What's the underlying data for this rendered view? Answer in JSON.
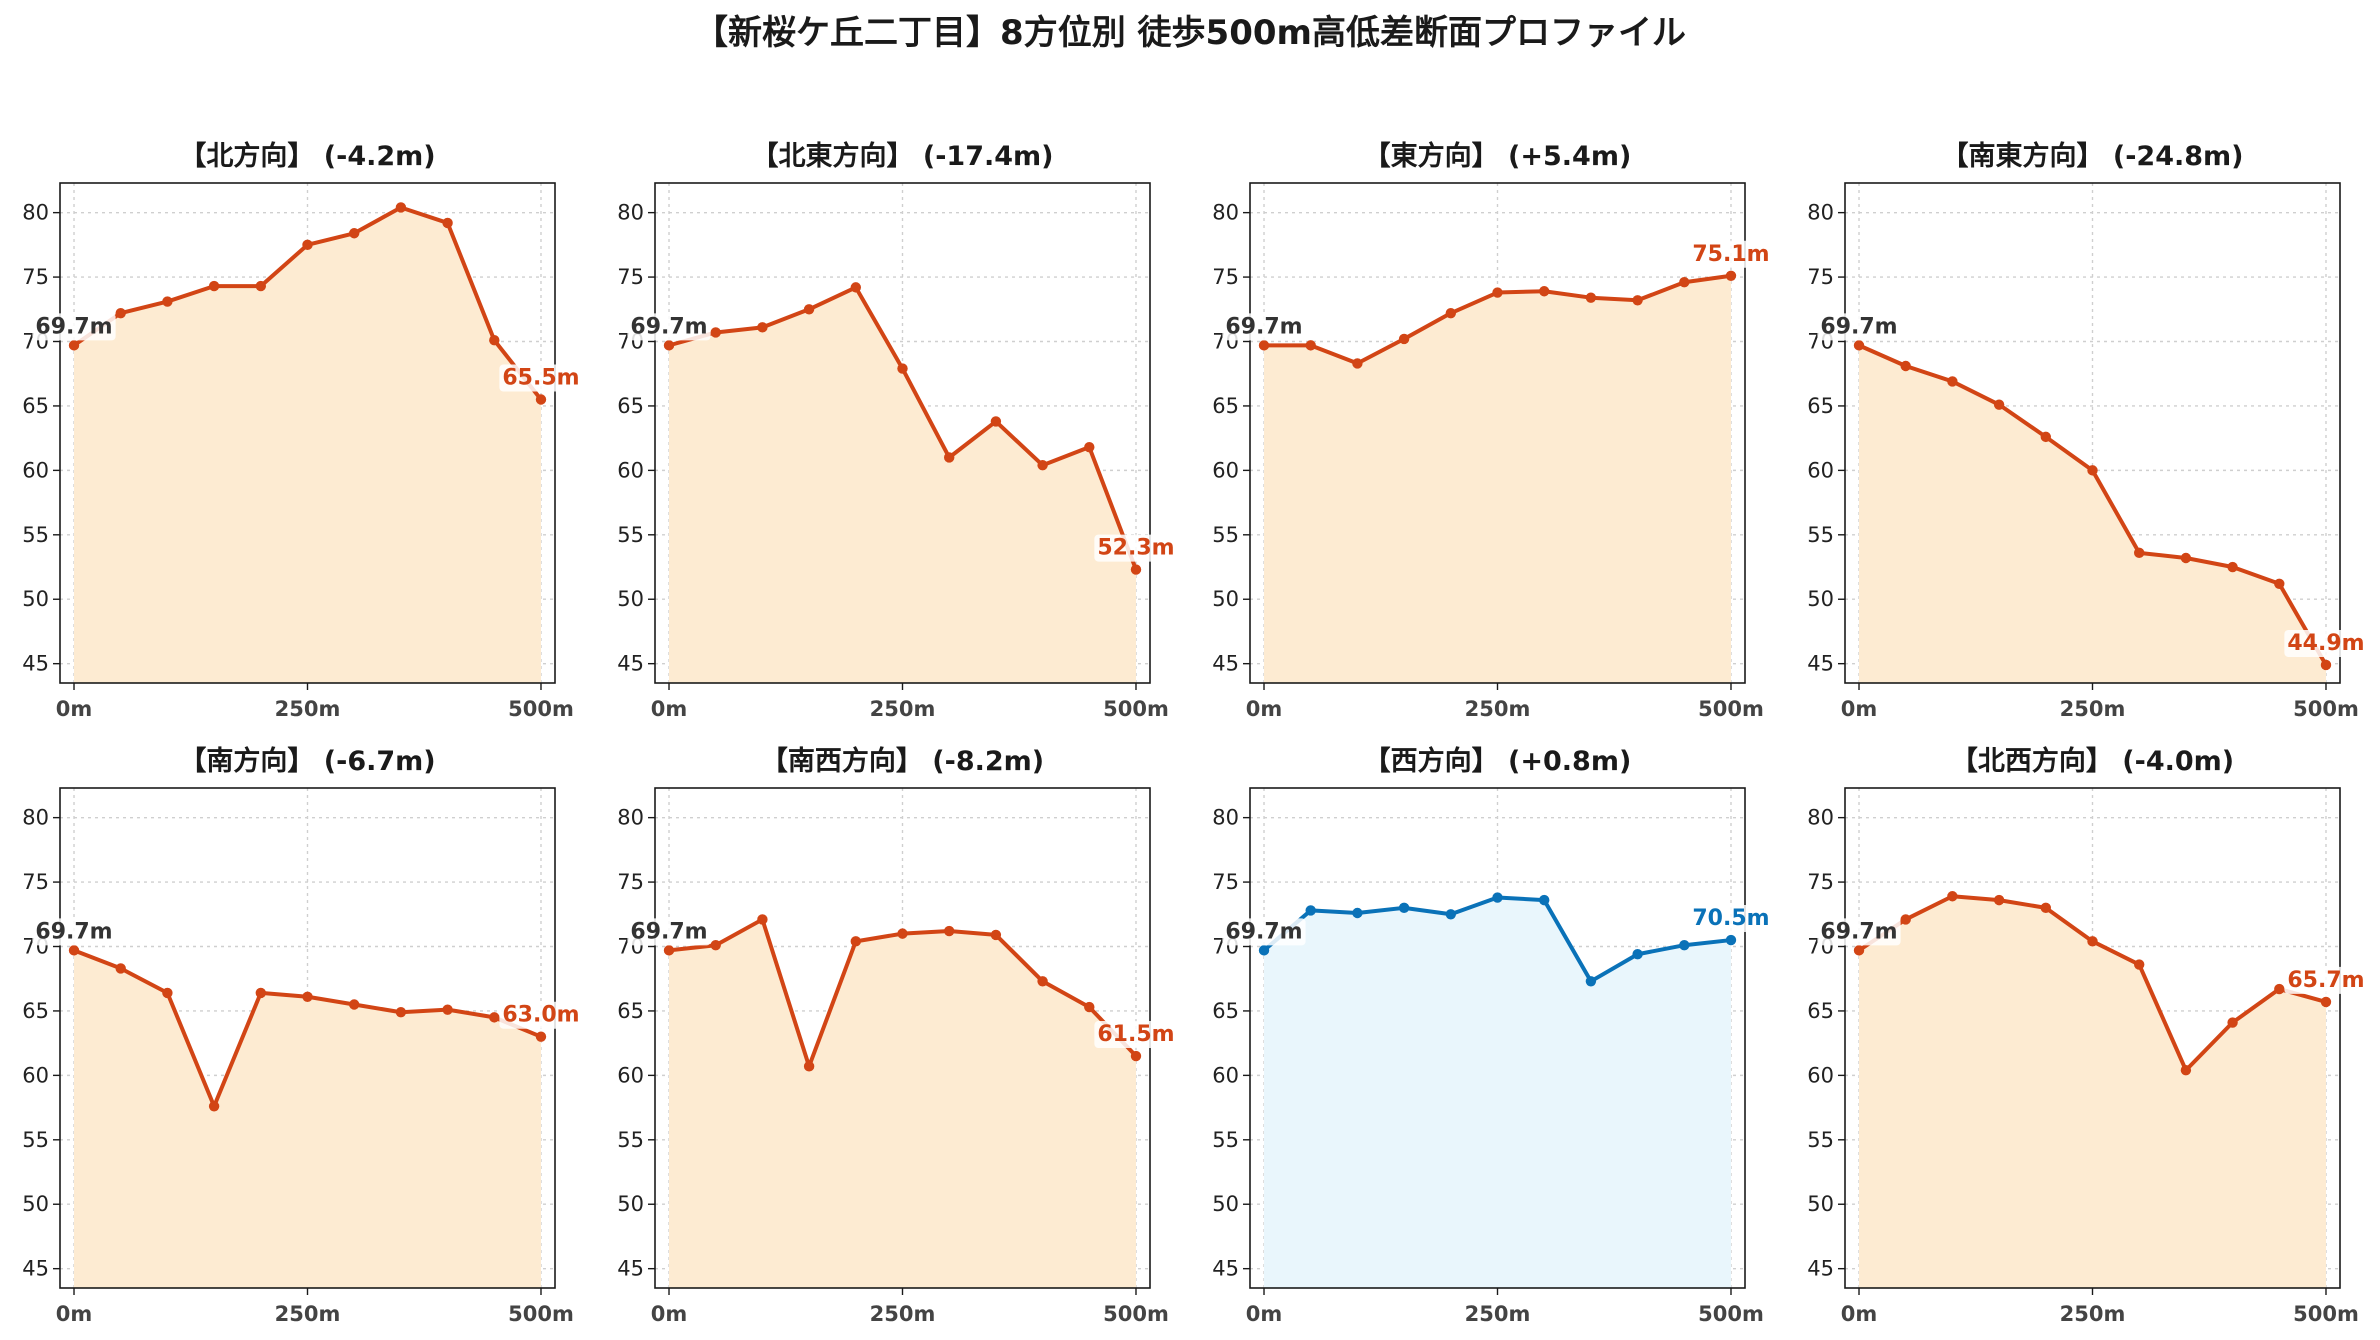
{
  "figure_title": "【新桜ケ丘二丁目】8方位別 徒歩500m高低差断面プロファイル",
  "chart_data": [
    {
      "type": "area",
      "title": "【北方向】 (-4.2m)",
      "x_ticks": [
        "0m",
        "250m",
        "500m"
      ],
      "y_ticks": [
        45,
        50,
        55,
        60,
        65,
        70,
        75,
        80
      ],
      "ylim": [
        43.5,
        82.3
      ],
      "xlim": [
        -15,
        515
      ],
      "grid": true,
      "x": [
        0,
        50,
        100,
        150,
        200,
        250,
        300,
        350,
        400,
        450,
        500
      ],
      "values": [
        69.7,
        72.2,
        73.1,
        74.3,
        74.3,
        77.5,
        78.4,
        80.4,
        79.2,
        70.1,
        65.5
      ],
      "start_label": "69.7m",
      "end_label": "65.5m",
      "line_color": "#d24515",
      "fill_color": "#fdebd2"
    },
    {
      "type": "area",
      "title": "【北東方向】 (-17.4m)",
      "x_ticks": [
        "0m",
        "250m",
        "500m"
      ],
      "y_ticks": [
        45,
        50,
        55,
        60,
        65,
        70,
        75,
        80
      ],
      "ylim": [
        43.5,
        82.3
      ],
      "xlim": [
        -15,
        515
      ],
      "grid": true,
      "x": [
        0,
        50,
        100,
        150,
        200,
        250,
        300,
        350,
        400,
        450,
        500
      ],
      "values": [
        69.7,
        70.7,
        71.1,
        72.5,
        74.2,
        67.9,
        61.0,
        63.8,
        60.4,
        61.8,
        52.3
      ],
      "start_label": "69.7m",
      "end_label": "52.3m",
      "line_color": "#d24515",
      "fill_color": "#fdebd2"
    },
    {
      "type": "area",
      "title": "【東方向】 (+5.4m)",
      "x_ticks": [
        "0m",
        "250m",
        "500m"
      ],
      "y_ticks": [
        45,
        50,
        55,
        60,
        65,
        70,
        75,
        80
      ],
      "ylim": [
        43.5,
        82.3
      ],
      "xlim": [
        -15,
        515
      ],
      "grid": true,
      "x": [
        0,
        50,
        100,
        150,
        200,
        250,
        300,
        350,
        400,
        450,
        500
      ],
      "values": [
        69.7,
        69.7,
        68.3,
        70.2,
        72.2,
        73.8,
        73.9,
        73.4,
        73.2,
        74.6,
        75.1
      ],
      "start_label": "69.7m",
      "end_label": "75.1m",
      "line_color": "#d24515",
      "fill_color": "#fdebd2"
    },
    {
      "type": "area",
      "title": "【南東方向】 (-24.8m)",
      "x_ticks": [
        "0m",
        "250m",
        "500m"
      ],
      "y_ticks": [
        45,
        50,
        55,
        60,
        65,
        70,
        75,
        80
      ],
      "ylim": [
        43.5,
        82.3
      ],
      "xlim": [
        -15,
        515
      ],
      "grid": true,
      "x": [
        0,
        50,
        100,
        150,
        200,
        250,
        300,
        350,
        400,
        450,
        500
      ],
      "values": [
        69.7,
        68.1,
        66.9,
        65.1,
        62.6,
        60.0,
        53.6,
        53.2,
        52.5,
        51.2,
        44.9
      ],
      "start_label": "69.7m",
      "end_label": "44.9m",
      "line_color": "#d24515",
      "fill_color": "#fdebd2"
    },
    {
      "type": "area",
      "title": "【南方向】 (-6.7m)",
      "x_ticks": [
        "0m",
        "250m",
        "500m"
      ],
      "y_ticks": [
        45,
        50,
        55,
        60,
        65,
        70,
        75,
        80
      ],
      "ylim": [
        43.5,
        82.3
      ],
      "xlim": [
        -15,
        515
      ],
      "grid": true,
      "x": [
        0,
        50,
        100,
        150,
        200,
        250,
        300,
        350,
        400,
        450,
        500
      ],
      "values": [
        69.7,
        68.3,
        66.4,
        57.6,
        66.4,
        66.1,
        65.5,
        64.9,
        65.1,
        64.5,
        63.0
      ],
      "start_label": "69.7m",
      "end_label": "63.0m",
      "line_color": "#d24515",
      "fill_color": "#fdebd2"
    },
    {
      "type": "area",
      "title": "【南西方向】 (-8.2m)",
      "x_ticks": [
        "0m",
        "250m",
        "500m"
      ],
      "y_ticks": [
        45,
        50,
        55,
        60,
        65,
        70,
        75,
        80
      ],
      "ylim": [
        43.5,
        82.3
      ],
      "xlim": [
        -15,
        515
      ],
      "grid": true,
      "x": [
        0,
        50,
        100,
        150,
        200,
        250,
        300,
        350,
        400,
        450,
        500
      ],
      "values": [
        69.7,
        70.1,
        72.1,
        60.7,
        70.4,
        71.0,
        71.2,
        70.9,
        67.3,
        65.3,
        61.5
      ],
      "start_label": "69.7m",
      "end_label": "61.5m",
      "line_color": "#d24515",
      "fill_color": "#fdebd2"
    },
    {
      "type": "area",
      "title": "【西方向】 (+0.8m)",
      "x_ticks": [
        "0m",
        "250m",
        "500m"
      ],
      "y_ticks": [
        45,
        50,
        55,
        60,
        65,
        70,
        75,
        80
      ],
      "ylim": [
        43.5,
        82.3
      ],
      "xlim": [
        -15,
        515
      ],
      "grid": true,
      "x": [
        0,
        50,
        100,
        150,
        200,
        250,
        300,
        350,
        400,
        450,
        500
      ],
      "values": [
        69.7,
        72.8,
        72.6,
        73.0,
        72.5,
        73.8,
        73.6,
        67.3,
        69.4,
        70.1,
        70.5
      ],
      "start_label": "69.7m",
      "end_label": "70.5m",
      "line_color": "#0a72b8",
      "fill_color": "#e9f6fc"
    },
    {
      "type": "area",
      "title": "【北西方向】 (-4.0m)",
      "x_ticks": [
        "0m",
        "250m",
        "500m"
      ],
      "y_ticks": [
        45,
        50,
        55,
        60,
        65,
        70,
        75,
        80
      ],
      "ylim": [
        43.5,
        82.3
      ],
      "xlim": [
        -15,
        515
      ],
      "grid": true,
      "x": [
        0,
        50,
        100,
        150,
        200,
        250,
        300,
        350,
        400,
        450,
        500
      ],
      "values": [
        69.7,
        72.1,
        73.9,
        73.6,
        73.0,
        70.4,
        68.6,
        60.4,
        64.1,
        66.7,
        65.7
      ],
      "start_label": "69.7m",
      "end_label": "65.7m",
      "line_color": "#d24515",
      "fill_color": "#fdebd2"
    }
  ]
}
